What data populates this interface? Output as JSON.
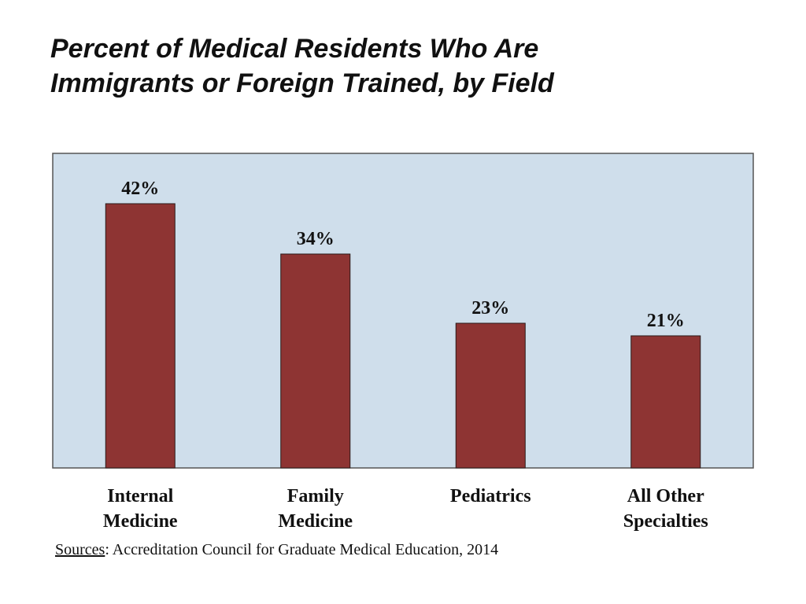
{
  "title": {
    "line1": "Percent of Medical Residents Who Are",
    "line2": "Immigrants or Foreign Trained, by Field"
  },
  "chart_data": {
    "type": "bar",
    "title": "Percent of Medical Residents Who Are Immigrants or Foreign Trained, by Field",
    "xlabel": "",
    "ylabel": "",
    "ylim": [
      0,
      50
    ],
    "grid": false,
    "legend": "none",
    "categories": [
      [
        "Internal",
        "Medicine"
      ],
      [
        "Family",
        "Medicine"
      ],
      [
        "Pediatrics"
      ],
      [
        "All Other",
        "Specialties"
      ]
    ],
    "values": [
      42,
      34,
      23,
      21
    ],
    "value_labels": [
      "42%",
      "34%",
      "23%",
      "21%"
    ],
    "colors": {
      "bar": "#8e3433",
      "plot_background": "#cfdeeb",
      "plot_border": "#555555"
    }
  },
  "source": {
    "label": "Sources",
    "text": ": Accreditation Council for Graduate Medical Education, 2014"
  }
}
